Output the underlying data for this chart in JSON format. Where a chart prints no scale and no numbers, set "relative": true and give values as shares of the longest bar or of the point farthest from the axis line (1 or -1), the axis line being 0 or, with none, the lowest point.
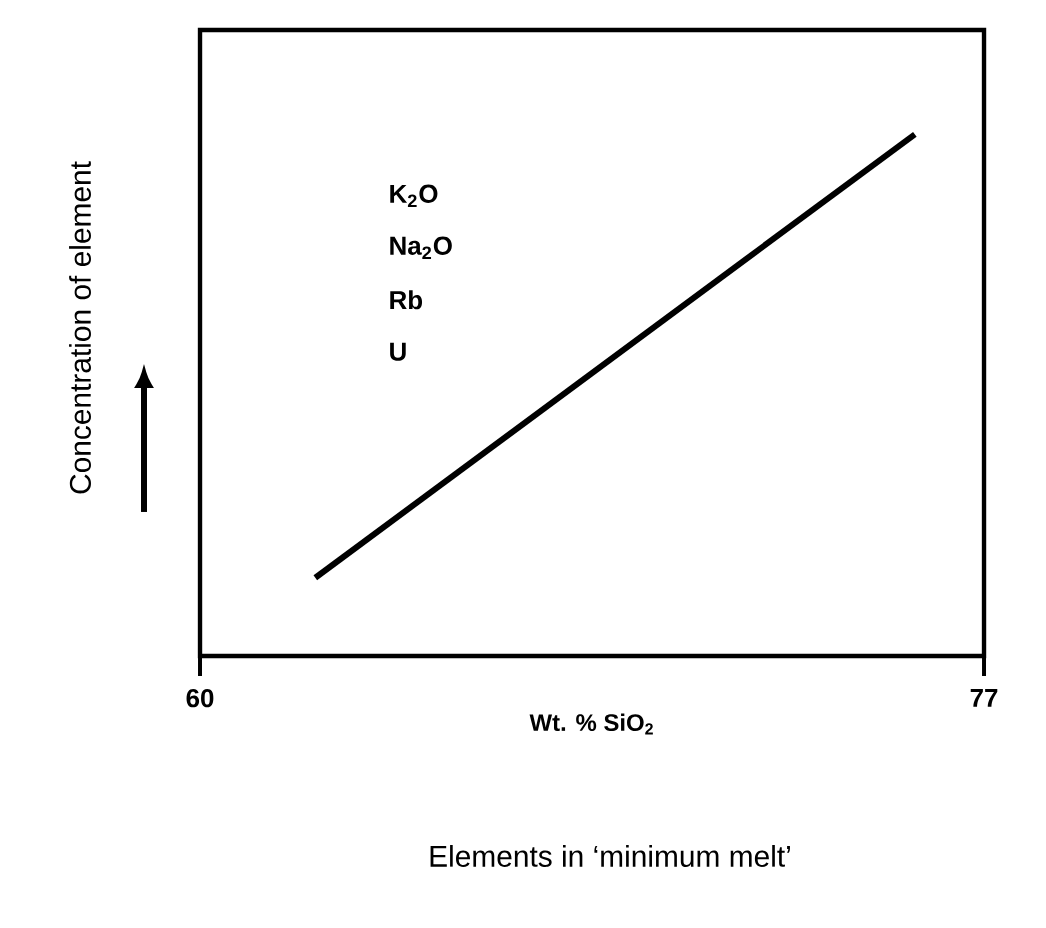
{
  "chart_data": {
    "type": "line",
    "title": "Elements in ‘minimum melt’",
    "xlabel": "Wt. % SiO$_{2}$",
    "ylabel": "Concentration of element",
    "relative": true,
    "xlim": [
      60,
      77
    ],
    "xticks": [
      60,
      77
    ],
    "annotations": [
      "K$_{2}$O",
      "Na$_{2}$O",
      "Rb",
      "U"
    ],
    "series": [
      {
        "color": "#000000",
        "x": [
          62.5,
          75.5
        ],
        "values": [
          0.15,
          1
        ]
      }
    ]
  }
}
